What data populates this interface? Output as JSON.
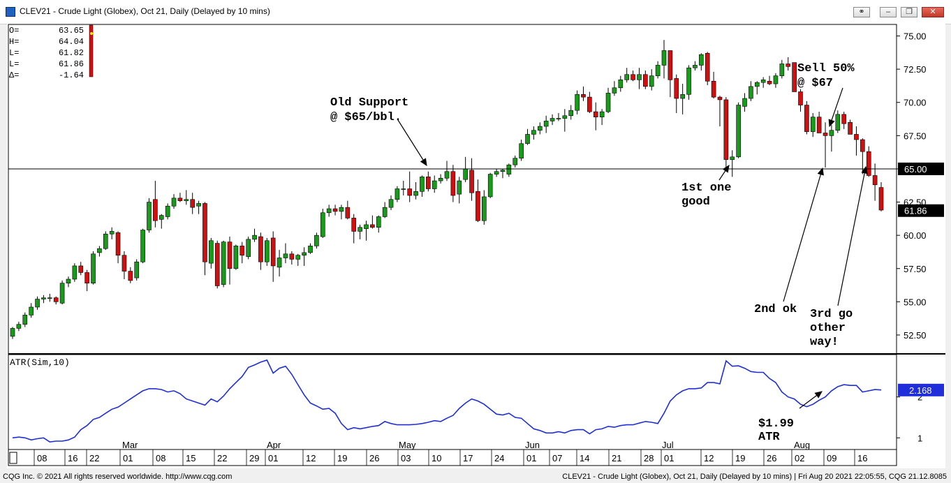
{
  "window": {
    "title": "CLEV21 - Crude Light (Globex), Oct 21, Daily (Delayed by 10 mins)",
    "buttons": [
      "link-icon",
      "minimize-icon",
      "restore-icon",
      "close-icon"
    ]
  },
  "ohlc_readout": {
    "labels": [
      "O=",
      "H=",
      "L=",
      "L=",
      "Δ="
    ],
    "values": [
      "63.65",
      "64.04",
      "61.82",
      "61.86",
      "-1.64"
    ]
  },
  "price_panel": {
    "y_ticks": [
      "75.00",
      "72.50",
      "70.00",
      "67.50",
      "65.00",
      "62.50",
      "60.00",
      "57.50",
      "55.00",
      "52.50"
    ],
    "hline_label": "65.00",
    "last_price_label": "61.86"
  },
  "atr_panel": {
    "label": "ATR(Sim,10)",
    "y_ticks": [
      "2",
      "1"
    ],
    "last_value_label": "2.168"
  },
  "x_axis": {
    "months": [
      "Mar",
      "Apr",
      "May",
      "Jun",
      "Jul",
      "Aug"
    ],
    "days": [
      "08",
      "16",
      "22",
      "01",
      "08",
      "15",
      "22",
      "29",
      "01",
      "12",
      "19",
      "26",
      "03",
      "10",
      "17",
      "24",
      "01",
      "07",
      "14",
      "21",
      "28",
      "01",
      "12",
      "19",
      "26",
      "02",
      "09",
      "16"
    ]
  },
  "annotations": {
    "old_support": [
      "Old Support",
      "@ $65/bbl."
    ],
    "sell": [
      "Sell 50%",
      "@ $67"
    ],
    "first": [
      "1st one",
      "good"
    ],
    "second": [
      "2nd ok"
    ],
    "third": [
      "3rd go",
      "other",
      "way!"
    ],
    "atr_note": [
      "$1.99",
      "ATR"
    ]
  },
  "colors": {
    "up": "#1a9a1a",
    "down": "#d01010",
    "atr_line": "#1f2ed8",
    "label_bg": "#000000",
    "atr_label_bg": "#1f2ed8"
  },
  "footer": {
    "left": "CQG Inc. © 2021 All rights reserved worldwide. http://www.cqg.com",
    "right": "CLEV21 - Crude Light (Globex), Oct 21, Daily (Delayed by 10 mins) | Fri Aug 20 2021 22:05:55, CQG 21.12.8085"
  },
  "chart_data": [
    {
      "type": "candlestick",
      "title": "CLEV21 - Crude Light (Globex), Oct 21, Daily (Delayed by 10 mins)",
      "ylim": [
        51.5,
        75.5
      ],
      "horizontal_line": 65.0,
      "last_price": 61.86,
      "candles": [
        [
          52.4,
          53.1,
          52.2,
          53.0
        ],
        [
          53.0,
          53.5,
          52.8,
          53.3
        ],
        [
          53.3,
          54.2,
          53.1,
          54.0
        ],
        [
          54.0,
          54.9,
          53.8,
          54.6
        ],
        [
          54.6,
          55.4,
          54.4,
          55.2
        ],
        [
          55.2,
          55.5,
          54.9,
          55.3
        ],
        [
          55.3,
          55.6,
          55.0,
          55.3
        ],
        [
          55.3,
          55.4,
          54.8,
          55.0
        ],
        [
          54.9,
          56.6,
          54.8,
          56.4
        ],
        [
          56.4,
          56.9,
          56.1,
          56.7
        ],
        [
          56.7,
          57.9,
          56.5,
          57.7
        ],
        [
          57.7,
          58.0,
          57.0,
          57.2
        ],
        [
          57.2,
          57.4,
          55.8,
          56.4
        ],
        [
          56.4,
          58.8,
          56.3,
          58.6
        ],
        [
          58.7,
          59.2,
          58.4,
          59.0
        ],
        [
          59.0,
          60.3,
          58.9,
          60.1
        ],
        [
          60.1,
          60.6,
          59.7,
          60.3
        ],
        [
          60.2,
          60.3,
          57.9,
          58.5
        ],
        [
          58.5,
          58.8,
          56.7,
          57.3
        ],
        [
          57.3,
          57.6,
          56.4,
          56.6
        ],
        [
          56.8,
          58.2,
          56.6,
          58.0
        ],
        [
          58.0,
          60.5,
          57.9,
          60.4
        ],
        [
          60.4,
          62.8,
          60.2,
          62.5
        ],
        [
          62.7,
          64.1,
          60.6,
          61.1
        ],
        [
          61.2,
          61.6,
          60.5,
          61.5
        ],
        [
          61.4,
          62.4,
          61.2,
          62.2
        ],
        [
          62.2,
          63.1,
          62.0,
          62.8
        ],
        [
          62.8,
          63.2,
          62.5,
          62.6
        ],
        [
          62.6,
          63.4,
          62.3,
          62.7
        ],
        [
          62.7,
          63.2,
          61.6,
          62.1
        ],
        [
          62.2,
          62.6,
          61.6,
          62.4
        ],
        [
          62.4,
          62.5,
          57.0,
          58.0
        ],
        [
          57.9,
          59.8,
          57.5,
          59.6
        ],
        [
          59.4,
          59.6,
          56.0,
          56.2
        ],
        [
          56.3,
          59.6,
          56.1,
          59.5
        ],
        [
          59.5,
          59.9,
          56.3,
          57.5
        ],
        [
          57.5,
          59.3,
          57.4,
          59.2
        ],
        [
          59.2,
          59.5,
          57.9,
          58.5
        ],
        [
          58.4,
          59.9,
          58.2,
          59.7
        ],
        [
          59.7,
          60.5,
          59.5,
          60.0
        ],
        [
          59.9,
          60.2,
          57.4,
          58.0
        ],
        [
          58.0,
          59.8,
          57.7,
          59.6
        ],
        [
          59.8,
          60.3,
          56.5,
          57.7
        ],
        [
          57.6,
          58.9,
          56.9,
          58.3
        ],
        [
          58.3,
          59.4,
          57.9,
          58.6
        ],
        [
          58.6,
          58.8,
          57.8,
          58.2
        ],
        [
          58.2,
          58.6,
          57.7,
          58.5
        ],
        [
          58.5,
          59.1,
          57.7,
          58.7
        ],
        [
          58.7,
          59.4,
          58.6,
          59.2
        ],
        [
          59.2,
          60.2,
          59.0,
          60.0
        ],
        [
          59.9,
          62.0,
          59.8,
          61.7
        ],
        [
          61.7,
          62.3,
          61.4,
          62.0
        ],
        [
          62.0,
          62.3,
          61.5,
          61.8
        ],
        [
          61.8,
          62.3,
          61.2,
          62.1
        ],
        [
          62.1,
          62.6,
          61.2,
          61.3
        ],
        [
          61.3,
          61.6,
          59.4,
          60.3
        ],
        [
          60.3,
          60.8,
          59.7,
          60.6
        ],
        [
          60.5,
          61.1,
          59.6,
          60.8
        ],
        [
          60.8,
          61.5,
          60.5,
          60.6
        ],
        [
          60.6,
          61.5,
          60.2,
          61.4
        ],
        [
          61.4,
          62.5,
          61.3,
          62.1
        ],
        [
          62.1,
          63.0,
          61.9,
          62.7
        ],
        [
          62.7,
          63.7,
          62.5,
          63.5
        ],
        [
          63.5,
          64.1,
          63.0,
          63.5
        ],
        [
          63.5,
          64.8,
          62.5,
          63.0
        ],
        [
          63.0,
          64.0,
          62.7,
          63.3
        ],
        [
          63.3,
          64.5,
          62.9,
          64.4
        ],
        [
          64.4,
          64.8,
          63.3,
          63.5
        ],
        [
          63.5,
          64.5,
          63.2,
          64.1
        ],
        [
          64.1,
          64.6,
          63.9,
          64.3
        ],
        [
          64.3,
          65.6,
          64.1,
          64.8
        ],
        [
          64.8,
          65.3,
          62.5,
          63.0
        ],
        [
          63.1,
          64.4,
          62.4,
          64.1
        ],
        [
          64.2,
          65.9,
          64.0,
          65.0
        ],
        [
          64.9,
          65.8,
          62.6,
          63.2
        ],
        [
          63.3,
          64.2,
          61.0,
          61.1
        ],
        [
          61.1,
          63.4,
          60.8,
          62.9
        ],
        [
          62.9,
          64.7,
          62.8,
          64.6
        ],
        [
          64.6,
          65.0,
          64.4,
          64.8
        ],
        [
          64.8,
          65.0,
          64.3,
          64.9
        ],
        [
          64.6,
          65.4,
          64.4,
          65.3
        ],
        [
          65.3,
          66.0,
          65.1,
          65.8
        ],
        [
          65.8,
          67.2,
          65.6,
          66.9
        ],
        [
          66.9,
          68.0,
          66.8,
          67.6
        ],
        [
          67.6,
          68.2,
          67.2,
          67.9
        ],
        [
          67.9,
          68.5,
          67.6,
          68.2
        ],
        [
          68.2,
          69.0,
          67.7,
          68.6
        ],
        [
          68.6,
          69.1,
          68.3,
          68.8
        ],
        [
          68.8,
          69.2,
          68.6,
          68.8
        ],
        [
          68.8,
          69.5,
          67.8,
          69.0
        ],
        [
          69.0,
          69.8,
          68.7,
          69.4
        ],
        [
          69.4,
          70.9,
          69.1,
          70.6
        ],
        [
          70.6,
          71.2,
          70.1,
          70.4
        ],
        [
          70.4,
          70.8,
          69.2,
          69.3
        ],
        [
          69.3,
          70.0,
          67.9,
          68.9
        ],
        [
          68.9,
          69.5,
          68.3,
          69.3
        ],
        [
          69.3,
          71.1,
          69.2,
          70.7
        ],
        [
          70.7,
          71.6,
          70.5,
          71.1
        ],
        [
          71.1,
          72.0,
          70.8,
          71.7
        ],
        [
          71.7,
          72.6,
          71.5,
          72.1
        ],
        [
          72.1,
          72.4,
          71.6,
          71.7
        ],
        [
          71.7,
          72.6,
          71.0,
          72.1
        ],
        [
          72.1,
          72.4,
          71.0,
          71.2
        ],
        [
          71.2,
          72.5,
          70.9,
          72.0
        ],
        [
          72.0,
          73.1,
          71.8,
          72.8
        ],
        [
          72.8,
          74.7,
          71.8,
          73.9
        ],
        [
          73.9,
          73.9,
          70.4,
          71.7
        ],
        [
          71.8,
          72.1,
          69.2,
          70.3
        ],
        [
          70.3,
          71.4,
          69.1,
          70.6
        ],
        [
          70.6,
          72.8,
          70.2,
          72.6
        ],
        [
          72.6,
          73.1,
          72.4,
          72.8
        ],
        [
          72.8,
          73.7,
          72.4,
          73.6
        ],
        [
          73.7,
          73.8,
          71.3,
          71.6
        ],
        [
          71.6,
          72.3,
          70.3,
          70.4
        ],
        [
          70.4,
          70.5,
          68.2,
          70.2
        ],
        [
          70.2,
          70.4,
          65.0,
          65.7
        ],
        [
          65.7,
          66.4,
          64.4,
          65.9
        ],
        [
          65.9,
          70.0,
          65.8,
          69.8
        ],
        [
          69.7,
          70.7,
          69.3,
          70.3
        ],
        [
          70.3,
          71.6,
          70.1,
          71.2
        ],
        [
          71.2,
          71.6,
          70.6,
          71.5
        ],
        [
          71.5,
          71.9,
          71.1,
          71.7
        ],
        [
          71.6,
          72.0,
          71.3,
          71.4
        ],
        [
          71.4,
          72.2,
          71.1,
          72.0
        ],
        [
          72.0,
          73.2,
          71.8,
          72.9
        ],
        [
          72.9,
          73.4,
          72.4,
          72.7
        ],
        [
          73.0,
          73.0,
          70.8,
          70.8
        ],
        [
          70.8,
          71.0,
          69.3,
          69.8
        ],
        [
          69.8,
          70.1,
          67.6,
          67.8
        ],
        [
          67.8,
          69.2,
          67.4,
          68.9
        ],
        [
          68.9,
          69.3,
          67.7,
          67.7
        ],
        [
          67.7,
          68.5,
          65.1,
          67.5
        ],
        [
          67.5,
          68.3,
          66.3,
          67.9
        ],
        [
          67.9,
          69.4,
          67.7,
          69.1
        ],
        [
          69.1,
          69.3,
          68.0,
          68.4
        ],
        [
          68.5,
          68.7,
          67.6,
          67.6
        ],
        [
          67.6,
          68.2,
          66.0,
          67.2
        ],
        [
          67.2,
          67.3,
          64.6,
          66.3
        ],
        [
          66.3,
          66.7,
          64.4,
          64.5
        ],
        [
          64.5,
          65.4,
          62.6,
          63.8
        ],
        [
          63.6,
          64.0,
          61.8,
          61.9
        ]
      ],
      "y_ticks": [
        75.0,
        72.5,
        70.0,
        67.5,
        65.0,
        62.5,
        60.0,
        57.5,
        55.0,
        52.5
      ]
    },
    {
      "type": "line",
      "title": "ATR(Sim,10)",
      "series": [
        {
          "name": "ATR(Sim,10)",
          "values": [
            1.0,
            1.02,
            1.0,
            0.95,
            0.98,
            1.0,
            0.9,
            0.92,
            0.92,
            0.95,
            1.02,
            1.2,
            1.3,
            1.45,
            1.5,
            1.6,
            1.7,
            1.75,
            1.85,
            1.95,
            2.05,
            2.15,
            2.2,
            2.2,
            2.18,
            2.12,
            2.15,
            2.08,
            1.95,
            1.9,
            1.85,
            1.8,
            1.95,
            1.88,
            2.02,
            2.2,
            2.35,
            2.5,
            2.72,
            2.78,
            2.85,
            2.9,
            2.58,
            2.7,
            2.75,
            2.55,
            2.3,
            2.05,
            1.85,
            1.78,
            1.7,
            1.72,
            1.6,
            1.35,
            1.2,
            1.25,
            1.22,
            1.25,
            1.28,
            1.3,
            1.4,
            1.35,
            1.32,
            1.32,
            1.32,
            1.33,
            1.35,
            1.38,
            1.42,
            1.4,
            1.48,
            1.55,
            1.72,
            1.85,
            1.95,
            1.9,
            1.82,
            1.7,
            1.58,
            1.56,
            1.6,
            1.5,
            1.48,
            1.35,
            1.22,
            1.18,
            1.12,
            1.12,
            1.15,
            1.12,
            1.18,
            1.2,
            1.2,
            1.1,
            1.2,
            1.22,
            1.28,
            1.26,
            1.3,
            1.32,
            1.32,
            1.36,
            1.4,
            1.38,
            1.35,
            1.6,
            1.9,
            2.05,
            2.15,
            2.2,
            2.2,
            2.22,
            2.35,
            2.35,
            2.32,
            2.88,
            2.75,
            2.76,
            2.7,
            2.62,
            2.6,
            2.6,
            2.45,
            2.35,
            2.12,
            2.0,
            1.95,
            1.82,
            1.76,
            1.82,
            1.92,
            2.0,
            2.15,
            2.25,
            2.3,
            2.28,
            2.28,
            2.12,
            2.15,
            2.18,
            2.17
          ]
        }
      ],
      "ylim": [
        0.75,
        3.0
      ],
      "y_ticks": [
        2,
        1
      ],
      "last_value": 2.168
    }
  ]
}
